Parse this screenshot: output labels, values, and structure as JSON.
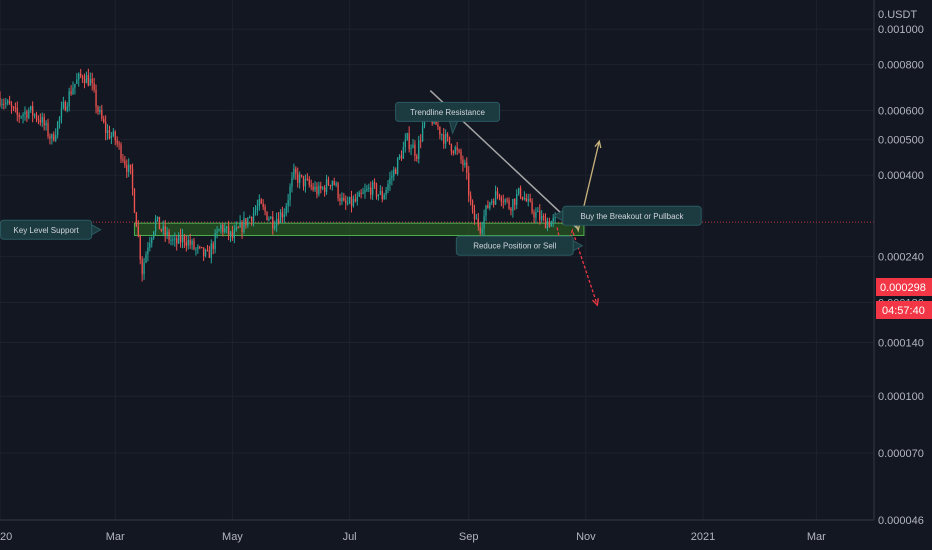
{
  "chart_data": {
    "type": "candlestick",
    "title": "",
    "yaxis": {
      "scale": "log",
      "currency_label": "USDT",
      "ticks": [
        "0.001000",
        "0.000800",
        "0.000600",
        "0.000500",
        "0.000400",
        "0.000240",
        "0.000180",
        "0.000140",
        "0.000100",
        "0.000070",
        "0.000046"
      ],
      "range": [
        4.6e-05,
        0.0012
      ]
    },
    "xaxis": {
      "range": [
        "2020-01-01",
        "2021-03-31"
      ],
      "ticks": [
        {
          "label": "2020",
          "date": "2020-01-01"
        },
        {
          "label": "Mar",
          "date": "2020-03-01"
        },
        {
          "label": "May",
          "date": "2020-05-01"
        },
        {
          "label": "Jul",
          "date": "2020-07-01"
        },
        {
          "label": "Sep",
          "date": "2020-09-01"
        },
        {
          "label": "Nov",
          "date": "2020-11-01"
        },
        {
          "label": "2021",
          "date": "2021-01-01"
        },
        {
          "label": "Mar",
          "date": "2021-03-01"
        }
      ]
    },
    "current_price": "0.000298",
    "countdown": "04:57:40",
    "price_path": [
      [
        "2020-01-01",
        0.00065
      ],
      [
        "2020-01-05",
        0.00062
      ],
      [
        "2020-01-10",
        0.00058
      ],
      [
        "2020-01-16",
        0.0006
      ],
      [
        "2020-01-22",
        0.00057
      ],
      [
        "2020-01-28",
        0.0005
      ],
      [
        "2020-02-03",
        0.00061
      ],
      [
        "2020-02-08",
        0.0007
      ],
      [
        "2020-02-13",
        0.00075
      ],
      [
        "2020-02-17",
        0.00072
      ],
      [
        "2020-02-21",
        0.0006
      ],
      [
        "2020-02-25",
        0.00053
      ],
      [
        "2020-03-01",
        0.0005
      ],
      [
        "2020-03-05",
        0.00045
      ],
      [
        "2020-03-09",
        0.0004
      ],
      [
        "2020-03-12",
        0.0003
      ],
      [
        "2020-03-15",
        0.00022
      ],
      [
        "2020-03-18",
        0.00026
      ],
      [
        "2020-03-22",
        0.0003
      ],
      [
        "2020-03-26",
        0.00028
      ],
      [
        "2020-04-01",
        0.00026
      ],
      [
        "2020-04-06",
        0.00027
      ],
      [
        "2020-04-12",
        0.00025
      ],
      [
        "2020-04-18",
        0.00024
      ],
      [
        "2020-04-25",
        0.00029
      ],
      [
        "2020-05-01",
        0.00027
      ],
      [
        "2020-05-08",
        0.0003
      ],
      [
        "2020-05-15",
        0.00033
      ],
      [
        "2020-05-22",
        0.0003
      ],
      [
        "2020-05-28",
        0.00032
      ],
      [
        "2020-06-02",
        0.0004
      ],
      [
        "2020-06-08",
        0.00038
      ],
      [
        "2020-06-15",
        0.00036
      ],
      [
        "2020-06-22",
        0.00039
      ],
      [
        "2020-06-28",
        0.00033
      ],
      [
        "2020-07-05",
        0.00034
      ],
      [
        "2020-07-12",
        0.00037
      ],
      [
        "2020-07-18",
        0.00035
      ],
      [
        "2020-07-25",
        0.00042
      ],
      [
        "2020-07-31",
        0.0005
      ],
      [
        "2020-08-05",
        0.00046
      ],
      [
        "2020-08-10",
        0.0006
      ],
      [
        "2020-08-15",
        0.00055
      ],
      [
        "2020-08-20",
        0.0005
      ],
      [
        "2020-08-25",
        0.00047
      ],
      [
        "2020-08-30",
        0.00042
      ],
      [
        "2020-09-03",
        0.00031
      ],
      [
        "2020-09-07",
        0.00029
      ],
      [
        "2020-09-12",
        0.00034
      ],
      [
        "2020-09-17",
        0.00036
      ],
      [
        "2020-09-22",
        0.00033
      ],
      [
        "2020-09-28",
        0.00036
      ],
      [
        "2020-10-04",
        0.00032
      ],
      [
        "2020-10-10",
        0.0003
      ],
      [
        "2020-10-16",
        0.000298
      ]
    ],
    "annotations": [
      {
        "label": "Trendline Resistance",
        "x": "2020-08-21",
        "y": 0.000595
      },
      {
        "label": "Key Level Support",
        "x": "2020-01-25",
        "y": 0.000284
      },
      {
        "label": "Buy the Breakout or Pullback",
        "x": "2020-11-25",
        "y": 0.00031
      },
      {
        "label": "Reduce Position or Sell",
        "x": "2020-09-25",
        "y": 0.000257
      }
    ],
    "support_zone": {
      "x_start": "2020-03-11",
      "x_end": "2020-10-31",
      "y_low": 0.000274,
      "y_high": 0.000296
    },
    "trendline": {
      "x_start": "2020-08-12",
      "y_start": 0.00068,
      "x_end": "2020-10-28",
      "y_end": 0.000285
    },
    "bull_path": [
      [
        "2020-10-20",
        0.000294
      ],
      [
        "2020-10-24",
        0.000325
      ],
      [
        "2020-10-28",
        0.000283
      ],
      [
        "2020-11-08",
        0.000495
      ]
    ],
    "bear_path": [
      [
        "2020-10-17",
        0.000288
      ],
      [
        "2020-10-20",
        0.000244
      ],
      [
        "2020-10-25",
        0.000283
      ],
      [
        "2020-11-07",
        0.000177
      ]
    ],
    "colors": {
      "background": "#131722",
      "up": "#26a69a",
      "down": "#ef5350",
      "grid": "#1e222d",
      "support_zone_fill": "#2e6b1f",
      "support_zone_stroke": "#4caf50",
      "trendline": "#a6a6a6",
      "bull_path": "#c8b27c",
      "bear_path": "#f23645",
      "annotation_bg": "#1b3b40",
      "annotation_stroke": "#2a5a60",
      "price_badge": "#f23645"
    }
  }
}
